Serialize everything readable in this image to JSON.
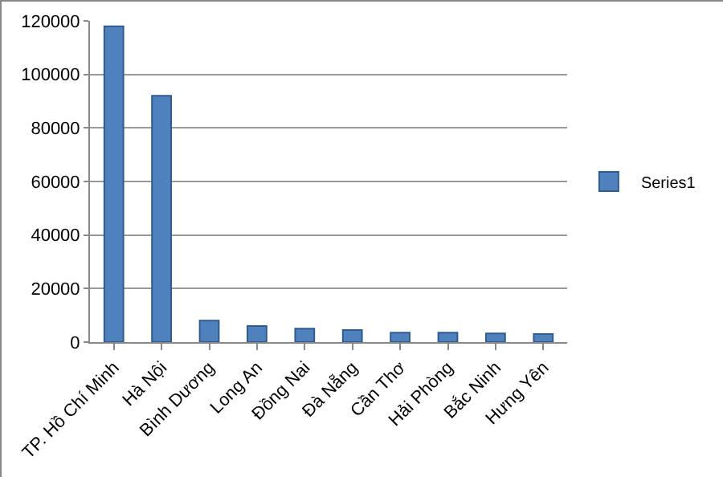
{
  "chart_data": {
    "type": "bar",
    "categories": [
      "TP. Hồ Chí Minh",
      "Hà Nội",
      "Bình Dương",
      "Long An",
      "Đồng Nai",
      "Đà Nẵng",
      "Cần Thơ",
      "Hải Phòng",
      "Bắc Ninh",
      "Hưng Yên"
    ],
    "series": [
      {
        "name": "Series1",
        "color": "#4f81bd",
        "values": [
          118000,
          92000,
          8000,
          6000,
          5000,
          4500,
          3500,
          3500,
          3200,
          3000
        ]
      }
    ],
    "ylim": [
      0,
      120000
    ],
    "yticks": [
      0,
      20000,
      40000,
      60000,
      80000,
      100000,
      120000
    ],
    "grid": "y",
    "legend": "right"
  }
}
